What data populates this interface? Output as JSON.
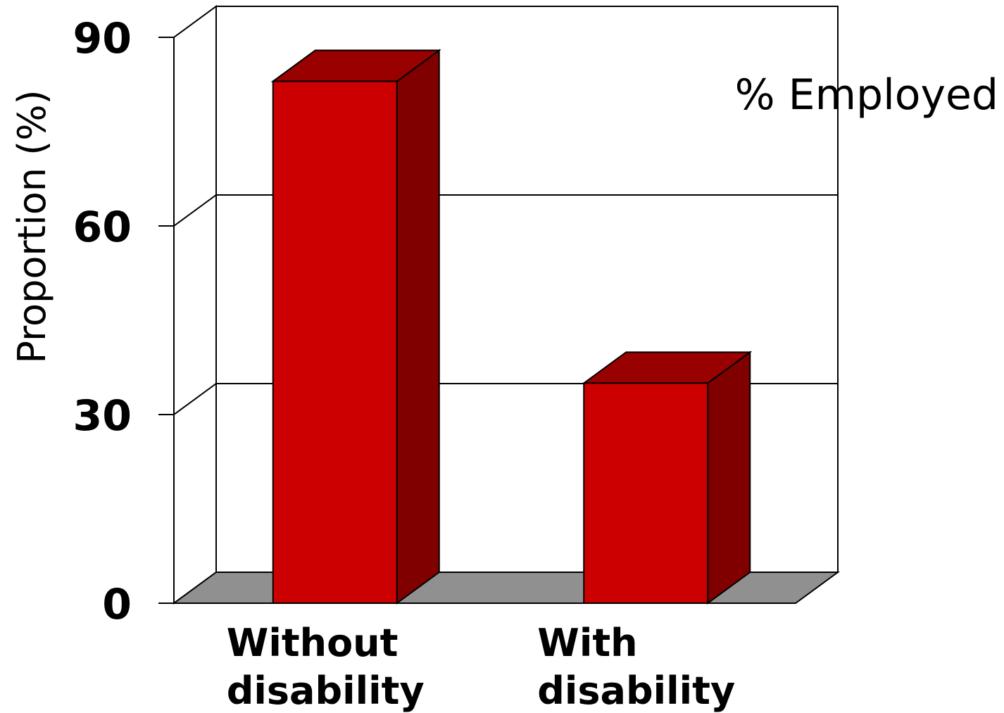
{
  "chart_data": {
    "type": "bar",
    "categories": [
      "Without disability",
      "With disability"
    ],
    "category_lines": [
      [
        "Without",
        "disability"
      ],
      [
        "With",
        "disability"
      ]
    ],
    "series": [
      {
        "name": "% Employed",
        "values": [
          83,
          35
        ]
      }
    ],
    "title": "",
    "xlabel": "",
    "ylabel": "Proportion (%)",
    "ylim": [
      0,
      90
    ],
    "yticks": [
      0,
      30,
      60,
      90
    ],
    "grid": true,
    "legend_position": "top-right",
    "three_d": true
  },
  "colors": {
    "bar_front": "#cc0000",
    "bar_top": "#990000",
    "bar_side": "#800000",
    "floor": "#909090",
    "walls": "#ffffff",
    "lines": "#000000"
  }
}
